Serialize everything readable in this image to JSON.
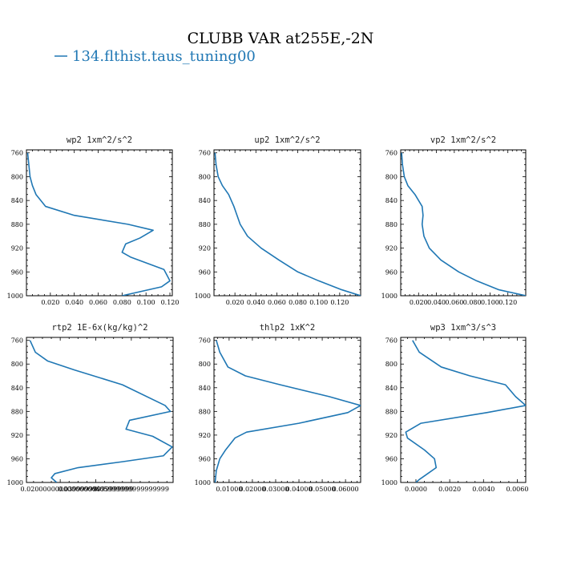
{
  "figure": {
    "title": "CLUBB VAR at255E,-2N",
    "legend": [
      {
        "label": "134.flthist.taus_tuning00",
        "color": "#1f77b4"
      }
    ]
  },
  "chart_data": [
    {
      "type": "line",
      "title": "wp2  1xm^2/s^2",
      "xlim": [
        0.0,
        0.122
      ],
      "ylim": [
        1000,
        755
      ],
      "y_reversed": true,
      "xticks": [
        0.02,
        0.04,
        0.06,
        0.08,
        0.1,
        0.12
      ],
      "xtick_labels": [
        "0.020",
        "0.040",
        "0.060",
        "0.080",
        "0.100",
        "0.120"
      ],
      "yticks": [
        760,
        800,
        840,
        880,
        920,
        960,
        1000
      ],
      "color": "#1f77b4",
      "series": [
        {
          "x": [
            0.001,
            0.002,
            0.003,
            0.005,
            0.008,
            0.016,
            0.04,
            0.085,
            0.106,
            0.095,
            0.083,
            0.08,
            0.087,
            0.115,
            0.12,
            0.113,
            0.08
          ],
          "y": [
            760,
            780,
            800,
            815,
            830,
            850,
            865,
            880,
            890,
            903,
            913,
            927,
            935,
            956,
            975,
            985,
            1000
          ]
        }
      ]
    },
    {
      "type": "line",
      "title": "up2  1xm^2/s^2",
      "xlim": [
        0.0,
        0.14
      ],
      "ylim": [
        1000,
        755
      ],
      "y_reversed": true,
      "xticks": [
        0.02,
        0.04,
        0.06,
        0.08,
        0.1,
        0.12
      ],
      "xtick_labels": [
        "0.020",
        "0.040",
        "0.060",
        "0.080",
        "0.100",
        "0.120"
      ],
      "yticks": [
        760,
        800,
        840,
        880,
        920,
        960,
        1000
      ],
      "color": "#1f77b4",
      "series": [
        {
          "x": [
            0.001,
            0.002,
            0.004,
            0.008,
            0.014,
            0.019,
            0.022,
            0.025,
            0.032,
            0.045,
            0.062,
            0.08,
            0.1,
            0.122,
            0.14
          ],
          "y": [
            760,
            780,
            800,
            815,
            830,
            850,
            865,
            880,
            900,
            920,
            940,
            960,
            975,
            990,
            1000
          ]
        }
      ]
    },
    {
      "type": "line",
      "title": "vp2  1xm^2/s^2",
      "xlim": [
        0.0,
        0.14
      ],
      "ylim": [
        1000,
        755
      ],
      "y_reversed": true,
      "xticks": [
        0.02,
        0.04,
        0.06,
        0.08,
        0.1,
        0.12
      ],
      "xtick_labels": [
        "0.020",
        "0.040",
        "0.060",
        "0.080",
        "0.100",
        "0.120"
      ],
      "yticks": [
        760,
        800,
        840,
        880,
        920,
        960,
        1000
      ],
      "color": "#1f77b4",
      "series": [
        {
          "x": [
            0.001,
            0.002,
            0.004,
            0.008,
            0.016,
            0.024,
            0.025,
            0.024,
            0.026,
            0.032,
            0.045,
            0.065,
            0.085,
            0.11,
            0.14
          ],
          "y": [
            760,
            780,
            800,
            815,
            830,
            850,
            865,
            880,
            900,
            920,
            940,
            960,
            975,
            990,
            1000
          ]
        }
      ]
    },
    {
      "type": "line",
      "title": "rtp2  1E-6x(kg/kg)^2",
      "xlim": [
        0.001,
        0.0835
      ],
      "ylim": [
        1000,
        755
      ],
      "y_reversed": true,
      "xticks": [
        0.02,
        0.04,
        0.06
      ],
      "xtick_labels": [
        "0.020000000000000004",
        "0.03999999999999999",
        "0.05999999999999999"
      ],
      "yticks": [
        760,
        800,
        840,
        880,
        920,
        960,
        1000
      ],
      "color": "#1f77b4",
      "series": [
        {
          "x": [
            0.003,
            0.006,
            0.013,
            0.028,
            0.055,
            0.079,
            0.082,
            0.059,
            0.057,
            0.072,
            0.083,
            0.078,
            0.055,
            0.03,
            0.017,
            0.015,
            0.018
          ],
          "y": [
            760,
            780,
            795,
            810,
            835,
            870,
            880,
            895,
            910,
            922,
            940,
            955,
            965,
            975,
            985,
            992,
            1000
          ]
        }
      ]
    },
    {
      "type": "line",
      "title": "thlp2  1xK^2",
      "xlim": [
        0.0035,
        0.0665
      ],
      "ylim": [
        1000,
        755
      ],
      "y_reversed": true,
      "xticks": [
        0.01,
        0.02,
        0.03,
        0.04,
        0.05,
        0.06
      ],
      "xtick_labels": [
        "0.01000",
        "0.02000",
        "0.03000",
        "0.04000",
        "0.05000",
        "0.06000"
      ],
      "yticks": [
        760,
        800,
        840,
        880,
        920,
        960,
        1000
      ],
      "color": "#1f77b4",
      "series": [
        {
          "x": [
            0.0045,
            0.006,
            0.0095,
            0.017,
            0.032,
            0.053,
            0.0665,
            0.061,
            0.04,
            0.0175,
            0.0125,
            0.0085,
            0.006,
            0.0045,
            0.004
          ],
          "y": [
            760,
            780,
            805,
            820,
            835,
            855,
            870,
            882,
            900,
            915,
            925,
            945,
            960,
            980,
            1000
          ]
        }
      ]
    },
    {
      "type": "line",
      "title": "wp3  1xm^3/s^3",
      "xlim": [
        -0.0009,
        0.0065
      ],
      "ylim": [
        1000,
        755
      ],
      "y_reversed": true,
      "xticks": [
        0.0,
        0.002,
        0.004,
        0.006
      ],
      "xtick_labels": [
        "0.0000",
        "0.0020",
        "0.0040",
        "0.0060"
      ],
      "yticks": [
        760,
        800,
        840,
        880,
        920,
        960,
        1000
      ],
      "color": "#1f77b4",
      "series": [
        {
          "x": [
            -0.0002,
            0.0002,
            0.0015,
            0.0032,
            0.0053,
            0.0059,
            0.0065,
            0.0042,
            0.0003,
            -0.0006,
            -0.0005,
            0.0005,
            0.0011,
            0.0012,
            0.0007,
            0.0002,
            0.0
          ],
          "y": [
            760,
            780,
            805,
            820,
            835,
            855,
            870,
            882,
            900,
            915,
            925,
            945,
            960,
            975,
            985,
            995,
            1000
          ]
        }
      ]
    }
  ]
}
